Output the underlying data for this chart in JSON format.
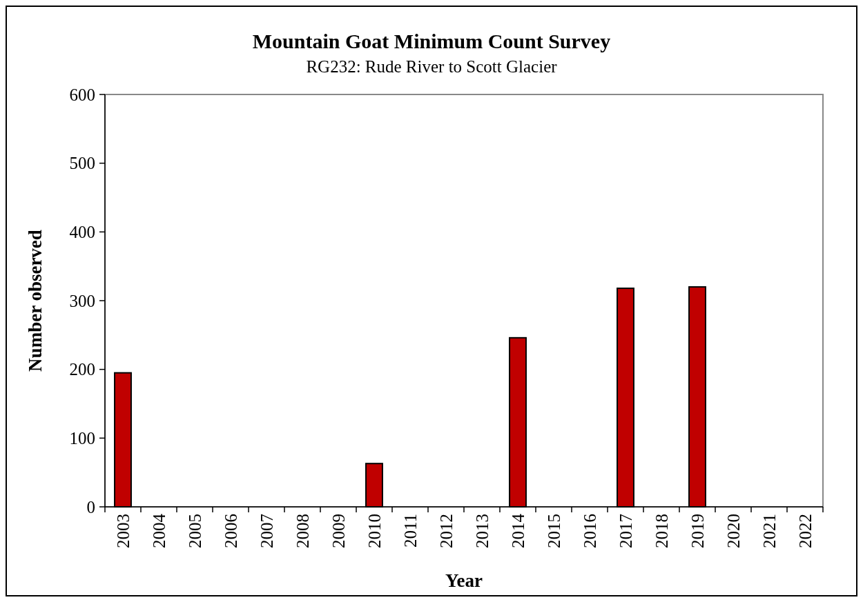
{
  "chart_data": {
    "type": "bar",
    "title": "Mountain Goat Minimum Count Survey",
    "subtitle": "RG232: Rude River to Scott Glacier",
    "xlabel": "Year",
    "ylabel": "Number observed",
    "categories": [
      "2003",
      "2004",
      "2005",
      "2006",
      "2007",
      "2008",
      "2009",
      "2010",
      "2011",
      "2012",
      "2013",
      "2014",
      "2015",
      "2016",
      "2017",
      "2018",
      "2019",
      "2020",
      "2021",
      "2022"
    ],
    "values": [
      195,
      null,
      null,
      null,
      null,
      null,
      null,
      63,
      null,
      null,
      null,
      246,
      null,
      null,
      318,
      null,
      320,
      null,
      null,
      null
    ],
    "color": "#c00000",
    "ylim": [
      0,
      600
    ],
    "yticks": [
      0,
      100,
      200,
      300,
      400,
      500,
      600
    ],
    "grid": false
  }
}
